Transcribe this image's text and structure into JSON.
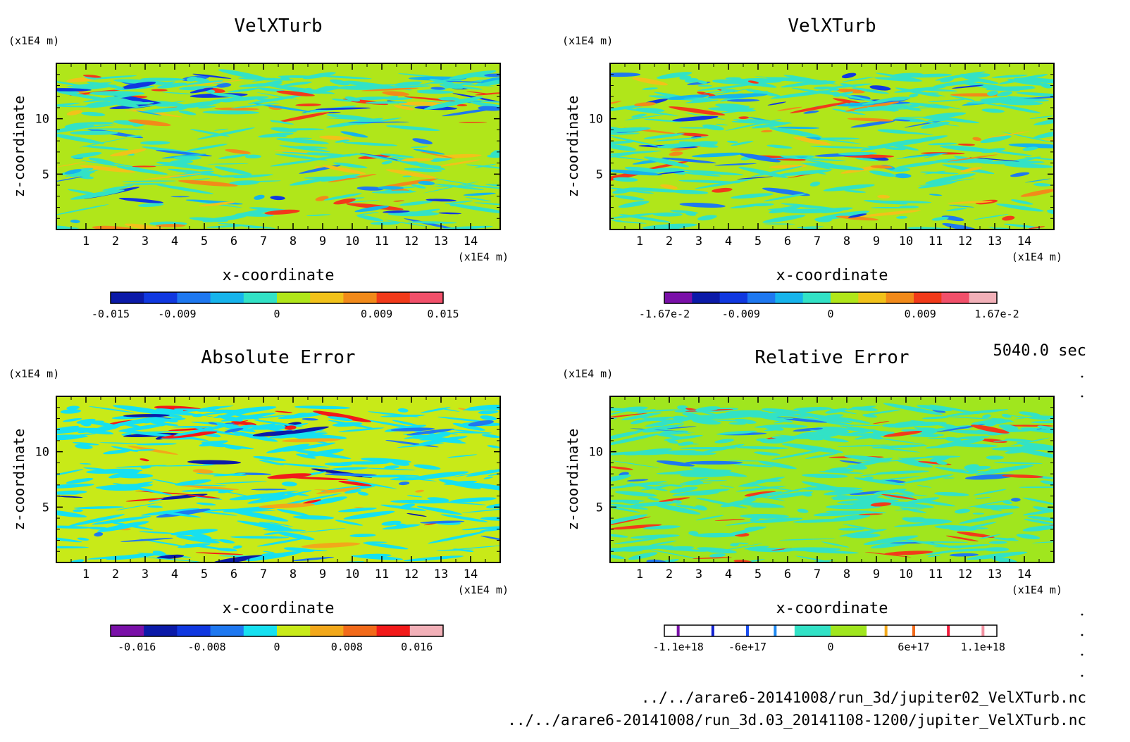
{
  "time_label": "5040.0 sec",
  "files": [
    "../../arare6-20141008/run_3d/jupiter02_VelXTurb.nc",
    "../../arare6-20141008/run_3d.03_20141108-1200/jupiter_VelXTurb.nc"
  ],
  "chart_data": [
    {
      "type": "heatmap",
      "title": "VelXTurb",
      "xlabel": "x-coordinate",
      "ylabel": "z-coordinate",
      "x_unit": "(x1E4 m)",
      "y_unit": "(x1E4 m)",
      "x_ticks": [
        1,
        2,
        3,
        4,
        5,
        6,
        7,
        8,
        9,
        10,
        11,
        12,
        13,
        14
      ],
      "y_ticks": [
        5,
        10
      ],
      "xlim": [
        0,
        15
      ],
      "ylim": [
        0,
        15
      ],
      "background_level": "#b0e61a",
      "colorbar": {
        "colors": [
          "#0b1aa8",
          "#1038e0",
          "#1e78f0",
          "#16b4ec",
          "#32e2c6",
          "#b0e61a",
          "#f2c21a",
          "#f28a1a",
          "#f23a1a",
          "#f2506a"
        ],
        "tick_labels": [
          "-0.015",
          "-0.009",
          "0",
          "0.009",
          "0.015"
        ],
        "tick_values": [
          -0.015,
          -0.009,
          0,
          0.009,
          0.015
        ],
        "range": [
          -0.015,
          0.015
        ]
      }
    },
    {
      "type": "heatmap",
      "title": "VelXTurb",
      "xlabel": "x-coordinate",
      "ylabel": "z-coordinate",
      "x_unit": "(x1E4 m)",
      "y_unit": "(x1E4 m)",
      "x_ticks": [
        1,
        2,
        3,
        4,
        5,
        6,
        7,
        8,
        9,
        10,
        11,
        12,
        13,
        14
      ],
      "y_ticks": [
        5,
        10
      ],
      "xlim": [
        0,
        15
      ],
      "ylim": [
        0,
        15
      ],
      "background_level": "#b0e61a",
      "colorbar": {
        "colors": [
          "#7a10a8",
          "#0b1aa8",
          "#1038e0",
          "#1e78f0",
          "#16b4ec",
          "#32e2c6",
          "#b0e61a",
          "#f2c21a",
          "#f28a1a",
          "#f23a1a",
          "#f2506a",
          "#f2b0b8"
        ],
        "tick_labels": [
          "-1.67e-2",
          "-0.009",
          "0",
          "0.009",
          "1.67e-2"
        ],
        "tick_values": [
          -0.0167,
          -0.009,
          0,
          0.009,
          0.0167
        ],
        "range": [
          -0.0167,
          0.0167
        ]
      }
    },
    {
      "type": "heatmap",
      "title": "Absolute Error",
      "xlabel": "x-coordinate",
      "ylabel": "z-coordinate",
      "x_unit": "(x1E4 m)",
      "y_unit": "(x1E4 m)",
      "x_ticks": [
        1,
        2,
        3,
        4,
        5,
        6,
        7,
        8,
        9,
        10,
        11,
        12,
        13,
        14
      ],
      "y_ticks": [
        5,
        10
      ],
      "xlim": [
        0,
        15
      ],
      "ylim": [
        0,
        15
      ],
      "background_level": "#c8ea18",
      "colorbar": {
        "colors": [
          "#7a10a8",
          "#0b1aa8",
          "#1038e0",
          "#1e78f0",
          "#16e0f0",
          "#c8ea18",
          "#f2a81a",
          "#f26a1a",
          "#f21a1a",
          "#f2b0b8"
        ],
        "tick_labels": [
          "-0.016",
          "-0.008",
          "0",
          "0.008",
          "0.016"
        ],
        "tick_values": [
          -0.016,
          -0.008,
          0,
          0.008,
          0.016
        ],
        "range": [
          -0.019,
          0.019
        ]
      }
    },
    {
      "type": "heatmap",
      "title": "Relative Error",
      "xlabel": "x-coordinate",
      "ylabel": "z-coordinate",
      "x_unit": "(x1E4 m)",
      "y_unit": "(x1E4 m)",
      "x_ticks": [
        1,
        2,
        3,
        4,
        5,
        6,
        7,
        8,
        9,
        10,
        11,
        12,
        13,
        14
      ],
      "y_ticks": [
        5,
        10
      ],
      "xlim": [
        0,
        15
      ],
      "ylim": [
        0,
        15
      ],
      "background_level": "#a0e61e",
      "colorbar": {
        "colors": [
          "#ffffff",
          "#32e2c6",
          "#a0e61e",
          "#ffffff"
        ],
        "tick_labels": [
          "-1.1e+18",
          "-6e+17",
          "0",
          "6e+17",
          "1.1e+18"
        ],
        "tick_values": [
          -1.1e+18,
          -6e+17,
          0,
          6e+17,
          1.1e+18
        ],
        "range": [
          -1.2e+18,
          1.2e+18
        ],
        "markers": [
          {
            "value": -1.1e+18,
            "color": "#7a10a8"
          },
          {
            "value": -8.5e+17,
            "color": "#1020d0"
          },
          {
            "value": -6e+17,
            "color": "#1a4ef0"
          },
          {
            "value": -4e+17,
            "color": "#1e88f0"
          },
          {
            "value": 4e+17,
            "color": "#f2a81a"
          },
          {
            "value": 6e+17,
            "color": "#f26a1a"
          },
          {
            "value": 8.5e+17,
            "color": "#f21a3a"
          },
          {
            "value": 1.1e+18,
            "color": "#f290a0"
          }
        ]
      }
    }
  ]
}
